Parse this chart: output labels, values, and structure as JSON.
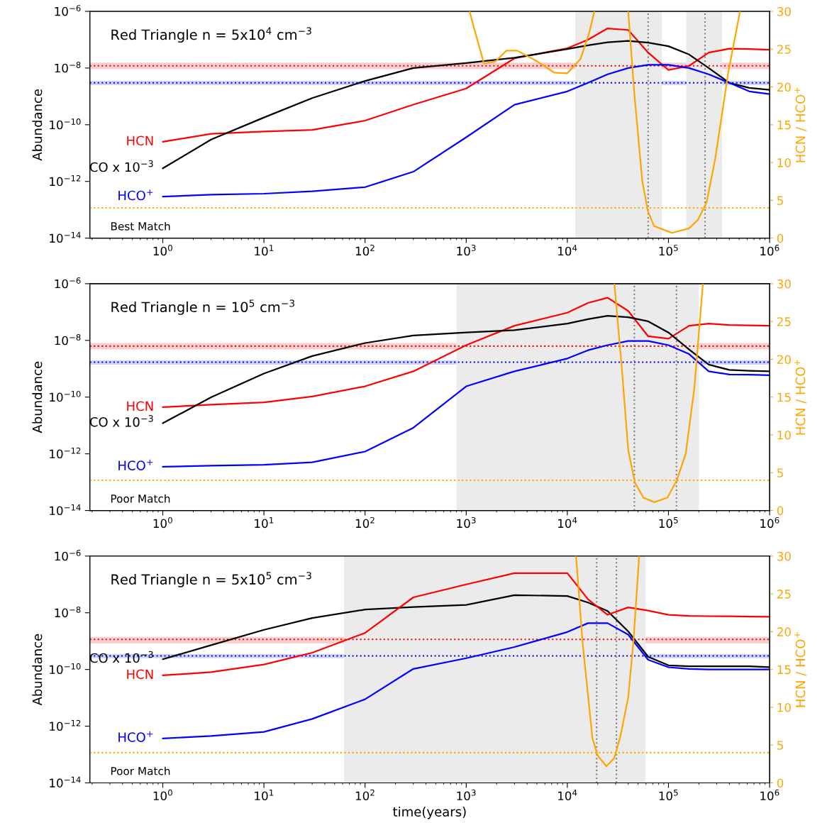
{
  "chart_data": [
    {
      "type": "line",
      "title": "Red Triangle n = 5x10$^{4}$ cm$^{−3}$",
      "ylabel": "Abundance",
      "y2label": "HCN / HCO$^{+}$",
      "annotations": [
        "Best Match"
      ],
      "log": "xy",
      "xlim": [
        0.19,
        1000000
      ],
      "ylim": [
        1e-14,
        1e-06
      ],
      "y2lim": [
        0,
        30
      ],
      "xticks": [
        {
          "value": 1,
          "label": "10$^{0}$"
        },
        {
          "value": 10,
          "label": "10$^{1}$"
        },
        {
          "value": 100,
          "label": "10$^{2}$"
        },
        {
          "value": 1000,
          "label": "10$^{3}$"
        },
        {
          "value": 10000,
          "label": "10$^{4}$"
        },
        {
          "value": 100000,
          "label": "10$^{5}$"
        },
        {
          "value": 1000000,
          "label": "10$^{6}$"
        }
      ],
      "yticks": [
        {
          "value": 1e-14,
          "label": "10$^{−14}$"
        },
        {
          "value": 1e-12,
          "label": "10$^{−12}$"
        },
        {
          "value": 1e-10,
          "label": "10$^{−10}$"
        },
        {
          "value": 1e-08,
          "label": "10$^{−8}$"
        },
        {
          "value": 1e-06,
          "label": "10$^{−6}$"
        }
      ],
      "y2ticks": [
        0,
        5,
        10,
        15,
        20,
        25,
        30
      ],
      "grid": false,
      "legend": false,
      "line_style": "solid",
      "marker": "none",
      "x": [
        1,
        3,
        10,
        30,
        100,
        300,
        1000,
        3000,
        10000,
        16000,
        25000,
        40000,
        63000,
        100000,
        160000,
        250000,
        400000,
        630000,
        1000000
      ],
      "series": [
        {
          "name": "HCN",
          "color": "#ff0000",
          "values": [
            2.5e-11,
            4.8e-11,
            5.8e-11,
            6.6e-11,
            1.4e-10,
            5.1e-10,
            1.9e-09,
            2.2e-08,
            5e-08,
            1e-07,
            2.5e-07,
            2.2e-07,
            3.5e-08,
            8.5e-09,
            1.2e-08,
            3.5e-08,
            4.8e-08,
            4.7e-08,
            4.4e-08
          ]
        },
        {
          "name": "CO x 10$^{−3}$",
          "color": "#000000",
          "values": [
            2.9e-12,
            3e-11,
            1.8e-10,
            8.7e-10,
            3.5e-09,
            1e-08,
            1.5e-08,
            2.3e-08,
            4.7e-08,
            6.3e-08,
            8.1e-08,
            9.1e-08,
            7.9e-08,
            5.9e-08,
            3e-08,
            1e-08,
            3e-09,
            2e-09,
            1.7e-09
          ]
        },
        {
          "name": "HCO$^{+}$",
          "color": "#0000ff",
          "values": [
            2.9e-13,
            3.4e-13,
            3.7e-13,
            4.5e-13,
            6.3e-13,
            2.2e-12,
            3.6e-11,
            5.1e-10,
            1.5e-09,
            3e-09,
            6e-09,
            1e-08,
            1.3e-08,
            1.3e-08,
            1e-08,
            6e-09,
            3e-09,
            1.5e-09,
            1.2e-09
          ]
        },
        {
          "color": "#ffa500",
          "axis": "y2",
          "x": [
            1080,
            1200,
            1500,
            1960,
            2500,
            3200,
            5000,
            7400,
            10000,
            13500,
            16400,
            18500,
            30000,
            40000,
            46000,
            55000,
            62500,
            72000,
            108000,
            160000,
            195000,
            238000,
            290000,
            390000,
            510000
          ],
          "values": [
            30,
            27.7,
            23.1,
            23.4,
            24.8,
            24.8,
            23.4,
            21.9,
            21.8,
            23.7,
            27.1,
            30,
            null,
            30,
            19.1,
            7.6,
            3.6,
            1.6,
            0.7,
            1.3,
            2.4,
            4.7,
            10.5,
            21.9,
            30
          ]
        }
      ],
      "ref_lines": [
        {
          "axis": "y",
          "value": 1.2e-08,
          "color": "#ff0000",
          "line_style": "dotted"
        },
        {
          "axis": "y",
          "value": 3e-09,
          "color": "#0000ff",
          "line_style": "dotted"
        },
        {
          "axis": "y2",
          "value": 4,
          "color": "#ffa500",
          "line_style": "dotted"
        },
        {
          "axis": "x",
          "value": 63000,
          "color": "#808080",
          "line_style": "dotted"
        },
        {
          "axis": "x",
          "value": 230000,
          "color": "#808080",
          "line_style": "dotted"
        }
      ],
      "bands": [
        {
          "axis": "y",
          "from": 9.1e-09,
          "to": 1.55e-08,
          "color": "#f8d0d0"
        },
        {
          "axis": "y",
          "from": 2.5e-09,
          "to": 3.5e-09,
          "color": "#d0d4f8"
        },
        {
          "axis": "x",
          "from": 12000,
          "to": 86000,
          "color": "#ebebeb"
        },
        {
          "axis": "x",
          "from": 150000,
          "to": 340000,
          "color": "#ebebeb"
        }
      ]
    },
    {
      "type": "line",
      "title": "Red Triangle n = 10$^{5}$ cm$^{−3}$",
      "ylabel": "Abundance",
      "y2label": "HCN / HCO$^{+}$",
      "annotations": [
        "Poor Match"
      ],
      "log": "xy",
      "xlim": [
        0.19,
        1000000
      ],
      "ylim": [
        1e-14,
        1e-06
      ],
      "y2lim": [
        0,
        30
      ],
      "xticks": [
        {
          "value": 1,
          "label": "10$^{0}$"
        },
        {
          "value": 10,
          "label": "10$^{1}$"
        },
        {
          "value": 100,
          "label": "10$^{2}$"
        },
        {
          "value": 1000,
          "label": "10$^{3}$"
        },
        {
          "value": 10000,
          "label": "10$^{4}$"
        },
        {
          "value": 100000,
          "label": "10$^{5}$"
        },
        {
          "value": 1000000,
          "label": "10$^{6}$"
        }
      ],
      "yticks": [
        {
          "value": 1e-14,
          "label": "10$^{−14}$"
        },
        {
          "value": 1e-12,
          "label": "10$^{−12}$"
        },
        {
          "value": 1e-10,
          "label": "10$^{−10}$"
        },
        {
          "value": 1e-08,
          "label": "10$^{−8}$"
        },
        {
          "value": 1e-06,
          "label": "10$^{−6}$"
        }
      ],
      "y2ticks": [
        0,
        5,
        10,
        15,
        20,
        25,
        30
      ],
      "grid": false,
      "legend": false,
      "line_style": "solid",
      "marker": "none",
      "x": [
        1,
        3,
        10,
        30,
        100,
        300,
        1000,
        3000,
        10000,
        16000,
        25000,
        40000,
        63000,
        100000,
        160000,
        250000,
        400000,
        630000,
        1000000
      ],
      "series": [
        {
          "name": "HCN",
          "color": "#ff0000",
          "values": [
            4.4e-11,
            5.4e-11,
            6.5e-11,
            1.05e-10,
            2.4e-10,
            8.1e-10,
            6.8e-09,
            3.3e-08,
            9.5e-08,
            2.1e-07,
            3.2e-07,
            1.1e-07,
            1.4e-08,
            1.15e-08,
            3.3e-08,
            3.9e-08,
            3.5e-08,
            3.4e-08,
            3.3e-08
          ]
        },
        {
          "name": "CO x 10$^{−3}$",
          "color": "#000000",
          "values": [
            1.2e-11,
            9.8e-11,
            6.8e-10,
            2.8e-09,
            8.1e-09,
            1.5e-08,
            1.9e-08,
            2.3e-08,
            3.9e-08,
            5.6e-08,
            7.4e-08,
            6.6e-08,
            4.7e-08,
            1.9e-08,
            4.8e-09,
            1.4e-09,
            9.1e-10,
            8.5e-10,
            8.1e-10
          ]
        },
        {
          "name": "HCO$^{+}$",
          "color": "#0000ff",
          "values": [
            3.5e-13,
            3.8e-13,
            4.1e-13,
            5e-13,
            1.2e-12,
            8.3e-12,
            2.4e-10,
            8.1e-10,
            2.3e-09,
            4.5e-09,
            6.8e-09,
            9.5e-09,
            9.5e-09,
            6.8e-09,
            3.3e-09,
            8.1e-10,
            6.3e-10,
            6.2e-10,
            5.9e-10
          ]
        },
        {
          "color": "#ffa500",
          "axis": "y2",
          "x": [
            29200,
            34500,
            40000,
            46500,
            56600,
            72400,
            97500,
            121000,
            148000,
            180000,
            219000
          ],
          "values": [
            30,
            19.0,
            8.0,
            3.7,
            1.7,
            1.1,
            1.7,
            4.0,
            7.5,
            16.1,
            30
          ]
        }
      ],
      "ref_lines": [
        {
          "axis": "y",
          "value": 6.3e-09,
          "color": "#ff0000",
          "line_style": "dotted"
        },
        {
          "axis": "y",
          "value": 1.7e-09,
          "color": "#0000ff",
          "line_style": "dotted"
        },
        {
          "axis": "y2",
          "value": 4,
          "color": "#ffa500",
          "line_style": "dotted"
        },
        {
          "axis": "x",
          "value": 46000,
          "color": "#808080",
          "line_style": "dotted"
        },
        {
          "axis": "x",
          "value": 120000,
          "color": "#808080",
          "line_style": "dotted"
        }
      ],
      "bands": [
        {
          "axis": "y",
          "from": 4.8e-09,
          "to": 8.1e-09,
          "color": "#f8d0d0"
        },
        {
          "axis": "y",
          "from": 1.4e-09,
          "to": 2e-09,
          "color": "#d0d4f8"
        },
        {
          "axis": "x",
          "from": 800,
          "to": 200000,
          "color": "#ebebeb"
        }
      ]
    },
    {
      "type": "line",
      "title": "Red Triangle n = 5x10$^{5}$ cm$^{−3}$",
      "xlabel": "time(years)",
      "ylabel": "Abundance",
      "y2label": "HCN / HCO$^{+}$",
      "annotations": [
        "Poor Match"
      ],
      "log": "xy",
      "xlim": [
        0.19,
        1000000
      ],
      "ylim": [
        1e-14,
        1e-06
      ],
      "y2lim": [
        0,
        30
      ],
      "xticks": [
        {
          "value": 1,
          "label": "10$^{0}$"
        },
        {
          "value": 10,
          "label": "10$^{1}$"
        },
        {
          "value": 100,
          "label": "10$^{2}$"
        },
        {
          "value": 1000,
          "label": "10$^{3}$"
        },
        {
          "value": 10000,
          "label": "10$^{4}$"
        },
        {
          "value": 100000,
          "label": "10$^{5}$"
        },
        {
          "value": 1000000,
          "label": "10$^{6}$"
        }
      ],
      "yticks": [
        {
          "value": 1e-14,
          "label": "10$^{−14}$"
        },
        {
          "value": 1e-12,
          "label": "10$^{−12}$"
        },
        {
          "value": 1e-10,
          "label": "10$^{−10}$"
        },
        {
          "value": 1e-08,
          "label": "10$^{−8}$"
        },
        {
          "value": 1e-06,
          "label": "10$^{−6}$"
        }
      ],
      "y2ticks": [
        0,
        5,
        10,
        15,
        20,
        25,
        30
      ],
      "grid": false,
      "legend": false,
      "line_style": "solid",
      "marker": "none",
      "x": [
        1,
        3,
        10,
        30,
        100,
        300,
        1000,
        3000,
        10000,
        16000,
        25000,
        40000,
        63000,
        100000,
        160000,
        250000,
        400000,
        630000,
        1000000
      ],
      "series": [
        {
          "name": "CO x 10$^{−3}$",
          "color": "#000000",
          "values": [
            2.3e-10,
            7.2e-10,
            2.5e-09,
            6.5e-09,
            1.3e-08,
            1.6e-08,
            1.9e-08,
            4.2e-08,
            3.9e-08,
            2.3e-08,
            1.15e-08,
            2.2e-09,
            2.8e-10,
            1.4e-10,
            1.3e-10,
            1.3e-10,
            1.3e-10,
            1.3e-10,
            1.2e-10
          ]
        },
        {
          "name": "HCN",
          "color": "#ff0000",
          "values": [
            6.2e-11,
            8.1e-11,
            1.5e-10,
            3.9e-10,
            1.95e-09,
            3.5e-08,
            1e-07,
            2.5e-07,
            2.5e-07,
            3e-08,
            8.5e-09,
            1.55e-08,
            1.2e-08,
            8.5e-09,
            7.8e-09,
            7.6e-09,
            7.5e-09,
            7.3e-09,
            7.2e-09
          ]
        },
        {
          "name": "HCO$^{+}$",
          "color": "#0000ff",
          "values": [
            3.7e-13,
            4.5e-13,
            6.3e-13,
            1.8e-12,
            8.9e-12,
            1.05e-10,
            2.5e-10,
            6.2e-10,
            2.1e-09,
            4.3e-09,
            4.3e-09,
            1.7e-09,
            2.2e-10,
            1.2e-10,
            1.05e-10,
            1e-10,
            1e-10,
            1e-10,
            1e-10
          ]
        },
        {
          "color": "#ffa500",
          "axis": "y2",
          "x": [
            12200,
            14100,
            16100,
            17700,
            20000,
            24300,
            29200,
            33500,
            40000,
            45100,
            51300
          ],
          "values": [
            30,
            18.8,
            11.3,
            5.9,
            3.6,
            2.2,
            3.3,
            6.2,
            11.3,
            18.8,
            30
          ]
        }
      ],
      "ref_lines": [
        {
          "axis": "y",
          "value": 1.15e-09,
          "color": "#ff0000",
          "line_style": "dotted"
        },
        {
          "axis": "y",
          "value": 3e-10,
          "color": "#0000ff",
          "line_style": "dotted"
        },
        {
          "axis": "y2",
          "value": 4,
          "color": "#ffa500",
          "line_style": "dotted"
        },
        {
          "axis": "x",
          "value": 19500,
          "color": "#808080",
          "line_style": "dotted"
        },
        {
          "axis": "x",
          "value": 30600,
          "color": "#808080",
          "line_style": "dotted"
        }
      ],
      "bands": [
        {
          "axis": "y",
          "from": 8.3e-10,
          "to": 1.4e-09,
          "color": "#f8d0d0"
        },
        {
          "axis": "y",
          "from": 2.5e-10,
          "to": 3.5e-10,
          "color": "#d0d4f8"
        },
        {
          "axis": "x",
          "from": 62,
          "to": 59000,
          "color": "#ebebeb"
        }
      ]
    }
  ]
}
